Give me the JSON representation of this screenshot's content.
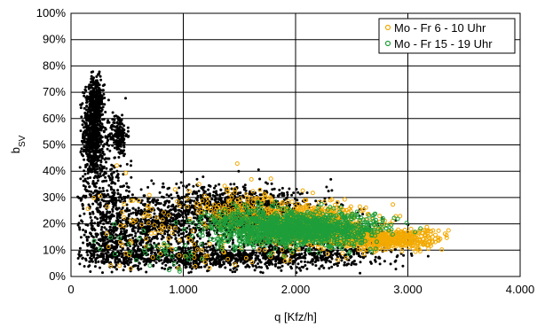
{
  "chart_data": {
    "type": "scatter",
    "xlabel": "q [Kfz/h]",
    "ylabel": "b",
    "ylabel_sub": "SV",
    "xlim": [
      0,
      4000
    ],
    "ylim": [
      0,
      100
    ],
    "grid": true,
    "legend_position": "top-right",
    "x_ticks": [
      "0",
      "1.000",
      "2.000",
      "3.000",
      "4.000"
    ],
    "y_ticks": [
      "0%",
      "10%",
      "20%",
      "30%",
      "40%",
      "50%",
      "60%",
      "70%",
      "80%",
      "90%",
      "100%"
    ],
    "series": [
      {
        "color": "#000000",
        "marker": "filled",
        "clusters": [
          {
            "x": 200,
            "y": 55,
            "sx": 45,
            "sy": 9,
            "n": 700
          },
          {
            "x": 220,
            "y": 68,
            "sx": 35,
            "sy": 4,
            "n": 160
          },
          {
            "x": 420,
            "y": 54,
            "sx": 40,
            "sy": 4,
            "n": 180
          },
          {
            "x": 300,
            "y": 30,
            "sx": 120,
            "sy": 9,
            "n": 350
          },
          {
            "x": 700,
            "y": 22,
            "sx": 200,
            "sy": 5,
            "n": 400
          },
          {
            "x": 1300,
            "y": 26,
            "sx": 280,
            "sy": 5,
            "n": 600
          },
          {
            "x": 1700,
            "y": 25,
            "sx": 300,
            "sy": 4,
            "n": 400
          },
          {
            "x": 1200,
            "y": 7,
            "sx": 650,
            "sy": 2,
            "n": 1000
          },
          {
            "x": 400,
            "y": 12,
            "sx": 180,
            "sy": 4,
            "n": 300
          },
          {
            "x": 1500,
            "y": 18,
            "sx": 500,
            "sy": 5,
            "n": 500
          },
          {
            "x": 2300,
            "y": 11,
            "sx": 350,
            "sy": 4,
            "n": 300
          }
        ]
      },
      {
        "name": "Mo - Fr 6 - 10 Uhr",
        "color": "#f2a900",
        "marker": "open",
        "clusters": [
          {
            "x": 2100,
            "y": 20,
            "sx": 280,
            "sy": 4,
            "n": 700
          },
          {
            "x": 2800,
            "y": 14,
            "sx": 260,
            "sy": 2,
            "n": 500
          },
          {
            "x": 1600,
            "y": 24,
            "sx": 280,
            "sy": 5,
            "n": 200
          },
          {
            "x": 700,
            "y": 22,
            "sx": 250,
            "sy": 6,
            "n": 60
          },
          {
            "x": 1200,
            "y": 8,
            "sx": 400,
            "sy": 3,
            "n": 40
          }
        ]
      },
      {
        "name": "Mo - Fr 15 - 19 Uhr",
        "color": "#1e9e3a",
        "marker": "open",
        "clusters": [
          {
            "x": 2000,
            "y": 18,
            "sx": 250,
            "sy": 3,
            "n": 900
          },
          {
            "x": 1600,
            "y": 19,
            "sx": 250,
            "sy": 4,
            "n": 300
          },
          {
            "x": 2500,
            "y": 18,
            "sx": 200,
            "sy": 3,
            "n": 200
          },
          {
            "x": 800,
            "y": 10,
            "sx": 300,
            "sy": 6,
            "n": 40
          }
        ]
      }
    ]
  }
}
